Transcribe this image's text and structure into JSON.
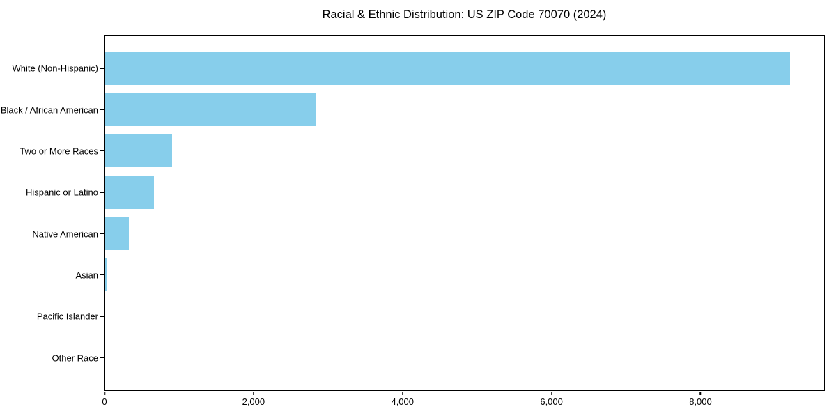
{
  "chart_data": {
    "type": "bar",
    "orientation": "horizontal",
    "title": "Racial & Ethnic Distribution: US ZIP Code 70070 (2024)",
    "xlabel": "",
    "ylabel": "",
    "categories": [
      "White (Non-Hispanic)",
      "Black / African American",
      "Two or More Races",
      "Hispanic or Latino",
      "Native American",
      "Asian",
      "Pacific Islander",
      "Other Race"
    ],
    "values": [
      9200,
      2830,
      910,
      660,
      323,
      35,
      0,
      0
    ],
    "xlim": [
      0,
      9660
    ],
    "xticks": [
      0,
      2000,
      4000,
      6000,
      8000
    ],
    "xtick_labels": [
      "0",
      "2,000",
      "4,000",
      "6,000",
      "8,000"
    ],
    "bar_color": "#87CEEB",
    "frame_color": "#000000",
    "text_color": "#000000",
    "background_color": "#ffffff",
    "grid": false,
    "legend": null
  }
}
